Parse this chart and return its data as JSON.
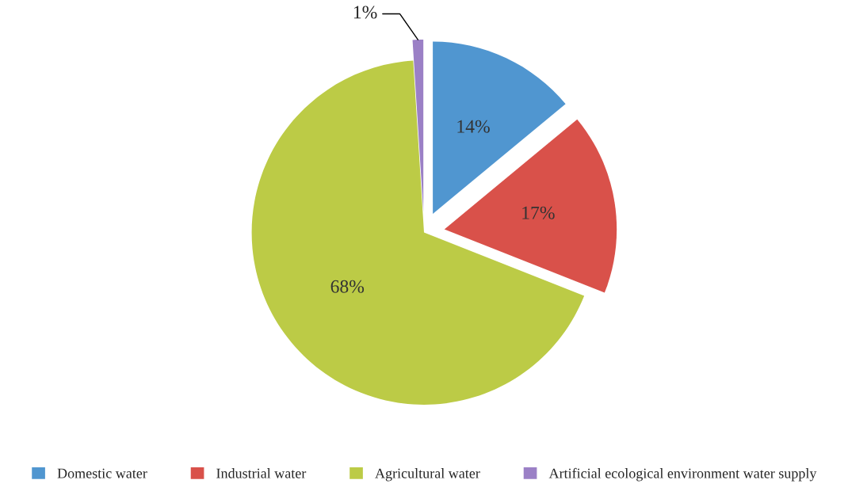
{
  "chart_data": {
    "type": "pie",
    "categories": [
      "Domestic water",
      "Industrial water",
      "Agricultural water",
      "Artificial ecological environment water supply"
    ],
    "values": [
      14,
      17,
      68,
      1
    ],
    "colors": [
      "#5096d0",
      "#d9514a",
      "#bccb46",
      "#9b80c6"
    ],
    "value_labels": [
      "14%",
      "17%",
      "68%",
      "1%"
    ],
    "legend": "bottom"
  }
}
